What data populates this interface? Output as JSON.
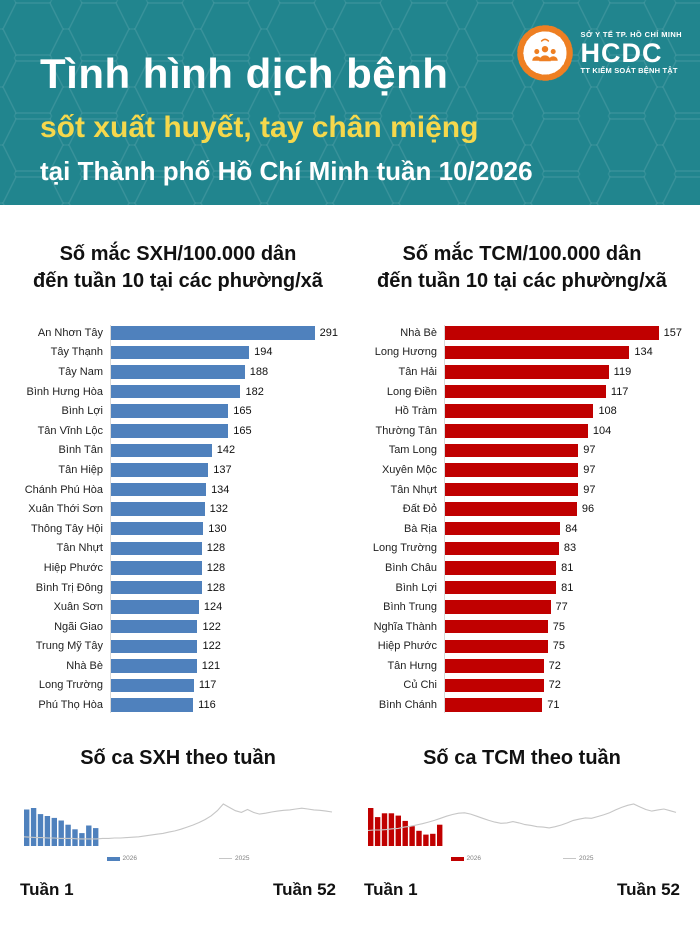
{
  "colors": {
    "header_teal": "#21858E",
    "header_yellow": "#F5D84C",
    "sxh_blue": "#4F81BD",
    "tcm_red": "#C00000",
    "trend_line_gray": "#C6C6C6",
    "logo_orange": "#EE7F22"
  },
  "header": {
    "title": "Tình hình dịch bệnh",
    "subtitle": "sốt xuất huyết, tay chân miệng",
    "subtitle2": "tại Thành phố Hồ Chí Minh tuần 10/2026",
    "logo": {
      "line_top": "SỞ Y TẾ TP. HỒ CHÍ MINH",
      "acronym": "HCDC",
      "line_bottom": "TT KIỂM SOÁT BỆNH TẬT"
    }
  },
  "chart_data": [
    {
      "id": "sxh-incidence-by-ward",
      "type": "bar",
      "orientation": "horizontal",
      "title_line1": "Số mắc SXH/100.000 dân",
      "title_line2": "đến tuần 10 tại các phường/xã",
      "bar_color": "#4F81BD",
      "xlim": [
        0,
        318
      ],
      "value_labels": true,
      "categories": [
        "An Nhơn Tây",
        "Tây Thạnh",
        "Tây Nam",
        "Bình Hưng Hòa",
        "Bình Lợi",
        "Tân Vĩnh Lộc",
        "Bình Tân",
        "Tân Hiệp",
        "Chánh Phú Hòa",
        "Xuân Thới Sơn",
        "Thông Tây Hội",
        "Tân Nhựt",
        "Hiệp Phước",
        "Bình Trị Đông",
        "Xuân Sơn",
        "Ngãi Giao",
        "Trung Mỹ Tây",
        "Nhà Bè",
        "Long Trường",
        "Phú Thọ Hòa"
      ],
      "values": [
        291,
        194,
        188,
        182,
        165,
        165,
        142,
        137,
        134,
        132,
        130,
        128,
        128,
        128,
        124,
        122,
        122,
        121,
        117,
        116
      ]
    },
    {
      "id": "tcm-incidence-by-ward",
      "type": "bar",
      "orientation": "horizontal",
      "title_line1": "Số mắc TCM/100.000 dân",
      "title_line2": "đến tuần 10 tại các phường/xã",
      "bar_color": "#C00000",
      "xlim": [
        0,
        172
      ],
      "value_labels": true,
      "categories": [
        "Nhà Bè",
        "Long Hương",
        "Tân Hải",
        "Long Điền",
        "Hồ Tràm",
        "Thường Tân",
        "Tam Long",
        "Xuyên Mộc",
        "Tân Nhựt",
        "Đất Đỏ",
        "Bà Rịa",
        "Long Trường",
        "Bình Châu",
        "Bình Lợi",
        "Bình Trung",
        "Nghĩa Thành",
        "Hiệp Phước",
        "Tân Hưng",
        "Củ Chi",
        "Bình Chánh"
      ],
      "values": [
        157,
        134,
        119,
        117,
        108,
        104,
        97,
        97,
        97,
        96,
        84,
        83,
        81,
        81,
        77,
        75,
        75,
        72,
        72,
        71
      ]
    },
    {
      "id": "sxh-weekly-cases",
      "type": "bar+line",
      "title": "Số ca SXH theo tuần",
      "x_axis": {
        "start_label": "Tuần 1",
        "end_label": "Tuần 52",
        "weeks": 52
      },
      "y_axis": "unlabeled",
      "ylim_relative_pct": [
        0,
        100
      ],
      "legend": [
        {
          "label": "2026",
          "marker": "bar",
          "color": "#4F81BD"
        },
        {
          "label": "2025",
          "marker": "line",
          "color": "#C6C6C6"
        }
      ],
      "series": [
        {
          "name": "2026",
          "type": "bar",
          "values_relative_pct": [
            96,
            100,
            84,
            79,
            74,
            67,
            56,
            44,
            34,
            54,
            47
          ]
        },
        {
          "name": "2025",
          "type": "line",
          "values_relative_pct": [
            22,
            21,
            20,
            20,
            19,
            19,
            18,
            18,
            18,
            17,
            17,
            17,
            17,
            18,
            18,
            19,
            19,
            20,
            21,
            22,
            24,
            26,
            28,
            30,
            33,
            36,
            40,
            45,
            50,
            56,
            63,
            72,
            84,
            100,
            92,
            84,
            80,
            87,
            80,
            76,
            78,
            81,
            83,
            85,
            86,
            88,
            90,
            88,
            86,
            85,
            83,
            81
          ]
        }
      ]
    },
    {
      "id": "tcm-weekly-cases",
      "type": "bar+line",
      "title": "Số ca TCM theo tuần",
      "x_axis": {
        "start_label": "Tuần 1",
        "end_label": "Tuần 52",
        "weeks": 52
      },
      "y_axis": "unlabeled",
      "ylim_relative_pct": [
        0,
        100
      ],
      "legend": [
        {
          "label": "2026",
          "marker": "bar",
          "color": "#C00000"
        },
        {
          "label": "2025",
          "marker": "line",
          "color": "#C6C6C6"
        }
      ],
      "series": [
        {
          "name": "2026",
          "type": "bar",
          "values_relative_pct": [
            100,
            76,
            86,
            86,
            80,
            66,
            52,
            40,
            30,
            32,
            56
          ]
        },
        {
          "name": "2025",
          "type": "line",
          "values_relative_pct": [
            37,
            38,
            38,
            39,
            41,
            42,
            45,
            47,
            50,
            53,
            57,
            61,
            66,
            71,
            75,
            78,
            79,
            76,
            71,
            66,
            61,
            57,
            54,
            55,
            58,
            55,
            51,
            49,
            46,
            45,
            43,
            46,
            50,
            55,
            61,
            64,
            67,
            66,
            70,
            74,
            79,
            86,
            92,
            97,
            100,
            93,
            87,
            83,
            86,
            88,
            84,
            80
          ]
        }
      ]
    }
  ]
}
